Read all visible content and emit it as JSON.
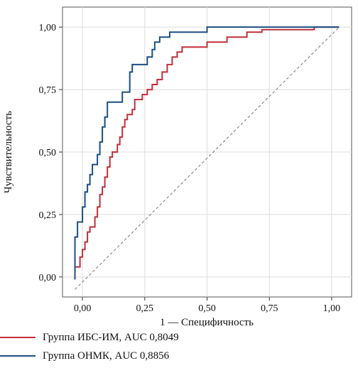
{
  "chart_data": {
    "type": "line",
    "title": "",
    "xlabel": "1 — Специфичность",
    "ylabel": "Чувствительность",
    "xlim": [
      -0.08,
      1.08
    ],
    "ylim": [
      -0.08,
      1.08
    ],
    "x_ticks": [
      0,
      0.25,
      0.5,
      0.75,
      1.0
    ],
    "x_tick_labels": [
      "0,00",
      "0,25",
      "0,50",
      "0,75",
      "1,00"
    ],
    "y_ticks": [
      0,
      0.25,
      0.5,
      0.75,
      1.0
    ],
    "y_tick_labels": [
      "0,00",
      "0,25",
      "0,50",
      "0,75",
      "1,00"
    ],
    "grid": true,
    "legend_position": "bottom",
    "series": [
      {
        "name": "Группа ИБС-ИМ, AUC 0,8049",
        "color": "#c0303a",
        "step": true,
        "points": [
          [
            -0.03,
            -0.01
          ],
          [
            -0.03,
            0.04
          ],
          [
            -0.01,
            0.04
          ],
          [
            -0.01,
            0.08
          ],
          [
            0.0,
            0.08
          ],
          [
            0.0,
            0.11
          ],
          [
            0.01,
            0.11
          ],
          [
            0.01,
            0.14
          ],
          [
            0.02,
            0.14
          ],
          [
            0.02,
            0.18
          ],
          [
            0.03,
            0.18
          ],
          [
            0.03,
            0.2
          ],
          [
            0.05,
            0.2
          ],
          [
            0.05,
            0.24
          ],
          [
            0.06,
            0.24
          ],
          [
            0.06,
            0.28
          ],
          [
            0.07,
            0.28
          ],
          [
            0.07,
            0.33
          ],
          [
            0.08,
            0.33
          ],
          [
            0.08,
            0.36
          ],
          [
            0.09,
            0.36
          ],
          [
            0.09,
            0.4
          ],
          [
            0.1,
            0.4
          ],
          [
            0.1,
            0.44
          ],
          [
            0.11,
            0.44
          ],
          [
            0.11,
            0.48
          ],
          [
            0.12,
            0.48
          ],
          [
            0.12,
            0.5
          ],
          [
            0.14,
            0.5
          ],
          [
            0.14,
            0.53
          ],
          [
            0.15,
            0.53
          ],
          [
            0.15,
            0.56
          ],
          [
            0.16,
            0.56
          ],
          [
            0.16,
            0.6
          ],
          [
            0.17,
            0.6
          ],
          [
            0.17,
            0.63
          ],
          [
            0.18,
            0.63
          ],
          [
            0.18,
            0.65
          ],
          [
            0.2,
            0.65
          ],
          [
            0.2,
            0.67
          ],
          [
            0.21,
            0.67
          ],
          [
            0.21,
            0.71
          ],
          [
            0.24,
            0.71
          ],
          [
            0.24,
            0.73
          ],
          [
            0.26,
            0.73
          ],
          [
            0.26,
            0.75
          ],
          [
            0.28,
            0.75
          ],
          [
            0.28,
            0.77
          ],
          [
            0.3,
            0.77
          ],
          [
            0.3,
            0.79
          ],
          [
            0.32,
            0.79
          ],
          [
            0.32,
            0.82
          ],
          [
            0.34,
            0.82
          ],
          [
            0.34,
            0.85
          ],
          [
            0.36,
            0.85
          ],
          [
            0.36,
            0.88
          ],
          [
            0.38,
            0.88
          ],
          [
            0.38,
            0.9
          ],
          [
            0.4,
            0.9
          ],
          [
            0.4,
            0.92
          ],
          [
            0.5,
            0.92
          ],
          [
            0.5,
            0.94
          ],
          [
            0.58,
            0.94
          ],
          [
            0.58,
            0.96
          ],
          [
            0.66,
            0.96
          ],
          [
            0.66,
            0.98
          ],
          [
            0.72,
            0.98
          ],
          [
            0.72,
            0.99
          ],
          [
            0.93,
            0.99
          ],
          [
            0.93,
            1.0
          ],
          [
            1.03,
            1.0
          ]
        ]
      },
      {
        "name": "Группа ОНМК, AUC 0,8856",
        "color": "#1c4f80",
        "step": true,
        "points": [
          [
            -0.03,
            -0.01
          ],
          [
            -0.03,
            0.16
          ],
          [
            -0.02,
            0.16
          ],
          [
            -0.02,
            0.22
          ],
          [
            0.0,
            0.22
          ],
          [
            0.0,
            0.28
          ],
          [
            0.01,
            0.28
          ],
          [
            0.01,
            0.34
          ],
          [
            0.02,
            0.34
          ],
          [
            0.02,
            0.37
          ],
          [
            0.03,
            0.37
          ],
          [
            0.03,
            0.41
          ],
          [
            0.04,
            0.41
          ],
          [
            0.04,
            0.45
          ],
          [
            0.06,
            0.45
          ],
          [
            0.06,
            0.49
          ],
          [
            0.07,
            0.49
          ],
          [
            0.07,
            0.54
          ],
          [
            0.08,
            0.54
          ],
          [
            0.08,
            0.6
          ],
          [
            0.09,
            0.6
          ],
          [
            0.09,
            0.64
          ],
          [
            0.1,
            0.64
          ],
          [
            0.1,
            0.7
          ],
          [
            0.16,
            0.7
          ],
          [
            0.16,
            0.74
          ],
          [
            0.19,
            0.74
          ],
          [
            0.19,
            0.82
          ],
          [
            0.2,
            0.82
          ],
          [
            0.2,
            0.85
          ],
          [
            0.26,
            0.85
          ],
          [
            0.26,
            0.88
          ],
          [
            0.28,
            0.88
          ],
          [
            0.28,
            0.91
          ],
          [
            0.29,
            0.91
          ],
          [
            0.29,
            0.94
          ],
          [
            0.31,
            0.94
          ],
          [
            0.31,
            0.96
          ],
          [
            0.35,
            0.96
          ],
          [
            0.35,
            0.98
          ],
          [
            0.5,
            0.98
          ],
          [
            0.5,
            1.0
          ],
          [
            1.03,
            1.0
          ]
        ]
      }
    ],
    "reference_line": [
      [
        -0.03,
        -0.05
      ],
      [
        1.03,
        1.0
      ]
    ]
  }
}
